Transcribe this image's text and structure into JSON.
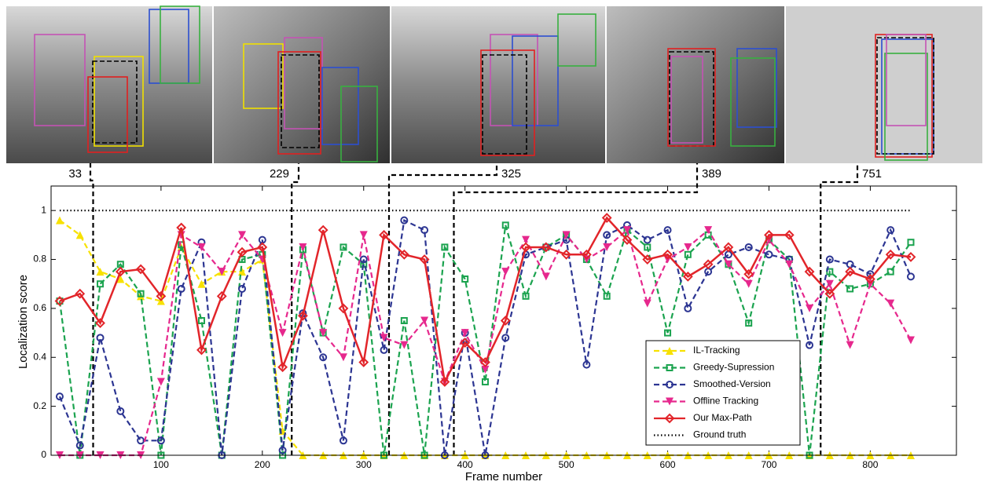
{
  "chart_data": {
    "type": "line",
    "x_label": "Frame number",
    "y_label": "Localization score",
    "x": [
      0,
      20,
      40,
      60,
      80,
      100,
      120,
      140,
      160,
      180,
      200,
      220,
      240,
      260,
      280,
      300,
      320,
      340,
      360,
      380,
      400,
      420,
      440,
      460,
      480,
      500,
      520,
      540,
      560,
      580,
      600,
      620,
      640,
      660,
      680,
      700,
      720,
      740,
      760,
      780,
      800,
      820,
      840
    ],
    "xlim": [
      -8.5,
      885
    ],
    "ylim": [
      0,
      1.1
    ],
    "xticks": [
      100,
      200,
      300,
      400,
      500,
      600,
      700,
      800
    ],
    "yticks": [
      0,
      0.2,
      0.4,
      0.6,
      0.8,
      1
    ],
    "legend": "lower right",
    "frame_markers": [
      33,
      229,
      325,
      389,
      751
    ],
    "series": [
      {
        "name": "IL-Tracking",
        "color": "#f7e100",
        "dash": "dash",
        "marker": "triangle-up",
        "values": [
          0.96,
          0.9,
          0.75,
          0.72,
          0.65,
          0.63,
          0.85,
          0.7,
          0.75,
          0.75,
          0.8,
          0.1,
          0,
          0,
          0,
          0,
          0,
          0,
          0,
          0,
          0,
          0,
          0,
          0,
          0,
          0,
          0,
          0,
          0,
          0,
          0,
          0,
          0,
          0,
          0,
          0,
          0,
          0,
          0,
          0,
          0,
          0,
          0
        ]
      },
      {
        "name": "Greedy-Supression",
        "color": "#1ba34f",
        "dash": "dash",
        "marker": "square",
        "values": [
          0.63,
          0,
          0.7,
          0.78,
          0.66,
          0,
          0.86,
          0.55,
          0,
          0.8,
          0.82,
          0,
          0.84,
          0.5,
          0.85,
          0.78,
          0,
          0.55,
          0,
          0.85,
          0.72,
          0.3,
          0.94,
          0.65,
          0.85,
          0.9,
          0.8,
          0.65,
          0.92,
          0.85,
          0.5,
          0.82,
          0.9,
          0.78,
          0.54,
          0.88,
          0.8,
          0,
          0.75,
          0.68,
          0.7,
          0.75,
          0.87
        ]
      },
      {
        "name": "Smoothed-Version",
        "color": "#2c3592",
        "dash": "dash",
        "marker": "circle",
        "values": [
          0.24,
          0.04,
          0.48,
          0.18,
          0.06,
          0.06,
          0.68,
          0.87,
          0,
          0.68,
          0.88,
          0.02,
          0.58,
          0.4,
          0.06,
          0.8,
          0.43,
          0.96,
          0.92,
          0,
          0.5,
          0,
          0.48,
          0.82,
          0.85,
          0.88,
          0.37,
          0.9,
          0.94,
          0.88,
          0.92,
          0.6,
          0.75,
          0.82,
          0.85,
          0.82,
          0.8,
          0.45,
          0.8,
          0.78,
          0.74,
          0.92,
          0.73
        ]
      },
      {
        "name": "Offline Tracking",
        "color": "#e6288d",
        "dash": "dash",
        "marker": "triangle-down",
        "values": [
          0,
          0,
          0,
          0,
          0,
          0.3,
          0.9,
          0.85,
          0.75,
          0.9,
          0.8,
          0.5,
          0.85,
          0.5,
          0.4,
          0.9,
          0.48,
          0.45,
          0.55,
          0.3,
          0.5,
          0.35,
          0.75,
          0.88,
          0.73,
          0.9,
          0.8,
          0.85,
          0.92,
          0.62,
          0.8,
          0.85,
          0.92,
          0.78,
          0.7,
          0.88,
          0.78,
          0.6,
          0.7,
          0.45,
          0.7,
          0.62,
          0.47
        ]
      },
      {
        "name": "Our Max-Path",
        "color": "#e2252a",
        "dash": "solid",
        "marker": "diamond",
        "values": [
          0.63,
          0.66,
          0.54,
          0.75,
          0.76,
          0.65,
          0.93,
          0.43,
          0.65,
          0.83,
          0.85,
          0.36,
          0.57,
          0.92,
          0.6,
          0.38,
          0.9,
          0.82,
          0.8,
          0.3,
          0.46,
          0.38,
          0.55,
          0.85,
          0.85,
          0.82,
          0.82,
          0.97,
          0.88,
          0.8,
          0.82,
          0.73,
          0.78,
          0.85,
          0.74,
          0.9,
          0.9,
          0.75,
          0.66,
          0.75,
          0.72,
          0.82,
          0.81
        ]
      },
      {
        "name": "Ground truth",
        "color": "#000000",
        "dash": "dot",
        "marker": "none",
        "values": [
          1,
          1,
          1,
          1,
          1,
          1,
          1,
          1,
          1,
          1,
          1,
          1,
          1,
          1,
          1,
          1,
          1,
          1,
          1,
          1,
          1,
          1,
          1,
          1,
          1,
          1,
          1,
          1,
          1,
          1,
          1,
          1,
          1,
          1,
          1,
          1,
          1,
          1,
          1,
          1,
          1,
          1,
          1
        ]
      }
    ]
  }
}
